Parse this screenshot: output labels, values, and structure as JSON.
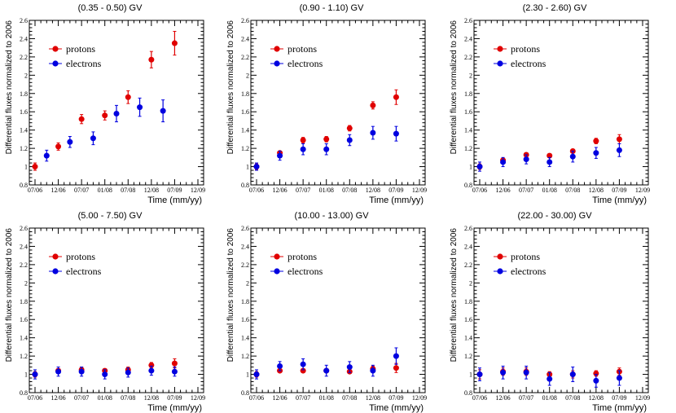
{
  "chart_data": [
    {
      "type": "scatter",
      "title": "(0.35 - 0.50) GV",
      "xlabel": "Time (mm/yy)",
      "ylabel": "Differential fluxes normalized to 2006",
      "ylim": [
        0.8,
        2.6
      ],
      "yticks": [
        "0.8",
        "1",
        "1.2",
        "1.4",
        "1.6",
        "1.8",
        "2",
        "2.2",
        "2.4",
        "2.6"
      ],
      "xticks": [
        "07/06",
        "12/06",
        "07/07",
        "01/08",
        "07/08",
        "12/08",
        "07/09",
        "12/09"
      ],
      "series": [
        {
          "name": "protons",
          "color": "#e00000",
          "points": [
            {
              "x": 0,
              "y": 1.0,
              "err": 0.04
            },
            {
              "x": 1,
              "y": 1.22,
              "err": 0.04
            },
            {
              "x": 2,
              "y": 1.52,
              "err": 0.05
            },
            {
              "x": 3,
              "y": 1.56,
              "err": 0.05
            },
            {
              "x": 4,
              "y": 1.76,
              "err": 0.07
            },
            {
              "x": 5,
              "y": 2.17,
              "err": 0.09
            },
            {
              "x": 6,
              "y": 2.35,
              "err": 0.13
            }
          ]
        },
        {
          "name": "electrons",
          "color": "#0000e0",
          "points": [
            {
              "x": 0.5,
              "y": 1.12,
              "err": 0.06
            },
            {
              "x": 1.5,
              "y": 1.27,
              "err": 0.06
            },
            {
              "x": 2.5,
              "y": 1.31,
              "err": 0.07
            },
            {
              "x": 3.5,
              "y": 1.58,
              "err": 0.09
            },
            {
              "x": 4.5,
              "y": 1.65,
              "err": 0.1
            },
            {
              "x": 5.5,
              "y": 1.61,
              "err": 0.12
            }
          ]
        }
      ]
    },
    {
      "type": "scatter",
      "title": "(0.90 - 1.10) GV",
      "xlabel": "Time (mm/yy)",
      "ylabel": "Differential fluxes normalized to 2006",
      "ylim": [
        0.8,
        2.6
      ],
      "yticks": [
        "0.8",
        "1",
        "1.2",
        "1.4",
        "1.6",
        "1.8",
        "2",
        "2.2",
        "2.4",
        "2.6"
      ],
      "xticks": [
        "07/06",
        "12/06",
        "07/07",
        "01/08",
        "07/08",
        "12/08",
        "07/09",
        "12/09"
      ],
      "series": [
        {
          "name": "protons",
          "color": "#e00000",
          "points": [
            {
              "x": 0,
              "y": 1.0,
              "err": 0.03
            },
            {
              "x": 1,
              "y": 1.15,
              "err": 0.02
            },
            {
              "x": 2,
              "y": 1.29,
              "err": 0.03
            },
            {
              "x": 3,
              "y": 1.3,
              "err": 0.03
            },
            {
              "x": 4,
              "y": 1.42,
              "err": 0.03
            },
            {
              "x": 5,
              "y": 1.67,
              "err": 0.04
            },
            {
              "x": 6,
              "y": 1.76,
              "err": 0.08
            }
          ]
        },
        {
          "name": "electrons",
          "color": "#0000e0",
          "points": [
            {
              "x": 0,
              "y": 1.0,
              "err": 0.04
            },
            {
              "x": 1,
              "y": 1.12,
              "err": 0.05
            },
            {
              "x": 2,
              "y": 1.19,
              "err": 0.06
            },
            {
              "x": 3,
              "y": 1.19,
              "err": 0.06
            },
            {
              "x": 4,
              "y": 1.29,
              "err": 0.06
            },
            {
              "x": 5,
              "y": 1.37,
              "err": 0.07
            },
            {
              "x": 6,
              "y": 1.36,
              "err": 0.08
            }
          ]
        }
      ]
    },
    {
      "type": "scatter",
      "title": "(2.30 - 2.60) GV",
      "xlabel": "Time (mm/yy)",
      "ylabel": "Differential fluxes normalized to 2006",
      "ylim": [
        0.8,
        2.6
      ],
      "yticks": [
        "0.8",
        "1",
        "1.2",
        "1.4",
        "1.6",
        "1.8",
        "2",
        "2.2",
        "2.4",
        "2.6"
      ],
      "xticks": [
        "07/06",
        "12/06",
        "07/07",
        "01/08",
        "07/08",
        "12/08",
        "07/09",
        "12/09"
      ],
      "series": [
        {
          "name": "protons",
          "color": "#e00000",
          "points": [
            {
              "x": 0,
              "y": 1.0,
              "err": 0.03
            },
            {
              "x": 1,
              "y": 1.07,
              "err": 0.02
            },
            {
              "x": 2,
              "y": 1.13,
              "err": 0.02
            },
            {
              "x": 3,
              "y": 1.12,
              "err": 0.02
            },
            {
              "x": 4,
              "y": 1.17,
              "err": 0.02
            },
            {
              "x": 5,
              "y": 1.28,
              "err": 0.03
            },
            {
              "x": 6,
              "y": 1.3,
              "err": 0.05
            }
          ]
        },
        {
          "name": "electrons",
          "color": "#0000e0",
          "points": [
            {
              "x": 0,
              "y": 1.0,
              "err": 0.05
            },
            {
              "x": 1,
              "y": 1.05,
              "err": 0.05
            },
            {
              "x": 2,
              "y": 1.08,
              "err": 0.05
            },
            {
              "x": 3,
              "y": 1.05,
              "err": 0.05
            },
            {
              "x": 4,
              "y": 1.11,
              "err": 0.06
            },
            {
              "x": 5,
              "y": 1.15,
              "err": 0.06
            },
            {
              "x": 6,
              "y": 1.18,
              "err": 0.07
            }
          ]
        }
      ]
    },
    {
      "type": "scatter",
      "title": "(5.00 - 7.50) GV",
      "xlabel": "Time (mm/yy)",
      "ylabel": "Differential fluxes normalized to 2006",
      "ylim": [
        0.8,
        2.6
      ],
      "yticks": [
        "0.8",
        "1",
        "1.2",
        "1.4",
        "1.6",
        "1.8",
        "2",
        "2.2",
        "2.4",
        "2.6"
      ],
      "xticks": [
        "07/06",
        "12/06",
        "07/07",
        "01/08",
        "07/08",
        "12/08",
        "07/09",
        "12/09"
      ],
      "series": [
        {
          "name": "protons",
          "color": "#e00000",
          "points": [
            {
              "x": 0,
              "y": 1.0,
              "err": 0.03
            },
            {
              "x": 1,
              "y": 1.04,
              "err": 0.02
            },
            {
              "x": 2,
              "y": 1.05,
              "err": 0.03
            },
            {
              "x": 3,
              "y": 1.04,
              "err": 0.02
            },
            {
              "x": 4,
              "y": 1.05,
              "err": 0.03
            },
            {
              "x": 5,
              "y": 1.1,
              "err": 0.03
            },
            {
              "x": 6,
              "y": 1.12,
              "err": 0.05
            }
          ]
        },
        {
          "name": "electrons",
          "color": "#0000e0",
          "points": [
            {
              "x": 0,
              "y": 1.0,
              "err": 0.05
            },
            {
              "x": 1,
              "y": 1.03,
              "err": 0.05
            },
            {
              "x": 2,
              "y": 1.03,
              "err": 0.05
            },
            {
              "x": 3,
              "y": 1.0,
              "err": 0.05
            },
            {
              "x": 4,
              "y": 1.02,
              "err": 0.05
            },
            {
              "x": 5,
              "y": 1.04,
              "err": 0.05
            },
            {
              "x": 6,
              "y": 1.03,
              "err": 0.05
            }
          ]
        }
      ]
    },
    {
      "type": "scatter",
      "title": "(10.00 - 13.00) GV",
      "xlabel": "Time (mm/yy)",
      "ylabel": "Differential fluxes normalized to 2006",
      "ylim": [
        0.8,
        2.6
      ],
      "yticks": [
        "0.8",
        "1",
        "1.2",
        "1.4",
        "1.6",
        "1.8",
        "2",
        "2.2",
        "2.4",
        "2.6"
      ],
      "xticks": [
        "07/06",
        "12/06",
        "07/07",
        "01/08",
        "07/08",
        "12/08",
        "07/09",
        "12/09"
      ],
      "series": [
        {
          "name": "protons",
          "color": "#e00000",
          "points": [
            {
              "x": 0,
              "y": 1.0,
              "err": 0.03
            },
            {
              "x": 1,
              "y": 1.04,
              "err": 0.02
            },
            {
              "x": 2,
              "y": 1.04,
              "err": 0.02
            },
            {
              "x": 3,
              "y": 1.04,
              "err": 0.02
            },
            {
              "x": 4,
              "y": 1.03,
              "err": 0.02
            },
            {
              "x": 5,
              "y": 1.06,
              "err": 0.03
            },
            {
              "x": 6,
              "y": 1.07,
              "err": 0.05
            }
          ]
        },
        {
          "name": "electrons",
          "color": "#0000e0",
          "points": [
            {
              "x": 0,
              "y": 1.0,
              "err": 0.05
            },
            {
              "x": 1,
              "y": 1.09,
              "err": 0.05
            },
            {
              "x": 2,
              "y": 1.11,
              "err": 0.06
            },
            {
              "x": 3,
              "y": 1.04,
              "err": 0.06
            },
            {
              "x": 4,
              "y": 1.08,
              "err": 0.06
            },
            {
              "x": 5,
              "y": 1.04,
              "err": 0.06
            },
            {
              "x": 6,
              "y": 1.2,
              "err": 0.09
            }
          ]
        }
      ]
    },
    {
      "type": "scatter",
      "title": "(22.00 - 30.00) GV",
      "xlabel": "Time (mm/yy)",
      "ylabel": "Differential fluxes normalized to 2006",
      "ylim": [
        0.8,
        2.6
      ],
      "yticks": [
        "0.8",
        "1",
        "1.2",
        "1.4",
        "1.6",
        "1.8",
        "2",
        "2.2",
        "2.4",
        "2.6"
      ],
      "xticks": [
        "07/06",
        "12/06",
        "07/07",
        "01/08",
        "07/08",
        "12/08",
        "07/09",
        "12/09"
      ],
      "series": [
        {
          "name": "protons",
          "color": "#e00000",
          "points": [
            {
              "x": 0,
              "y": 1.0,
              "err": 0.05
            },
            {
              "x": 1,
              "y": 1.03,
              "err": 0.04
            },
            {
              "x": 2,
              "y": 1.03,
              "err": 0.04
            },
            {
              "x": 3,
              "y": 1.0,
              "err": 0.03
            },
            {
              "x": 4,
              "y": 1.0,
              "err": 0.04
            },
            {
              "x": 5,
              "y": 1.01,
              "err": 0.03
            },
            {
              "x": 6,
              "y": 1.03,
              "err": 0.04
            }
          ]
        },
        {
          "name": "electrons",
          "color": "#0000e0",
          "points": [
            {
              "x": 0,
              "y": 1.0,
              "err": 0.07
            },
            {
              "x": 1,
              "y": 1.02,
              "err": 0.07
            },
            {
              "x": 2,
              "y": 1.02,
              "err": 0.07
            },
            {
              "x": 3,
              "y": 0.95,
              "err": 0.07
            },
            {
              "x": 4,
              "y": 1.0,
              "err": 0.08
            },
            {
              "x": 5,
              "y": 0.93,
              "err": 0.07
            },
            {
              "x": 6,
              "y": 0.96,
              "err": 0.08
            }
          ]
        }
      ]
    }
  ]
}
